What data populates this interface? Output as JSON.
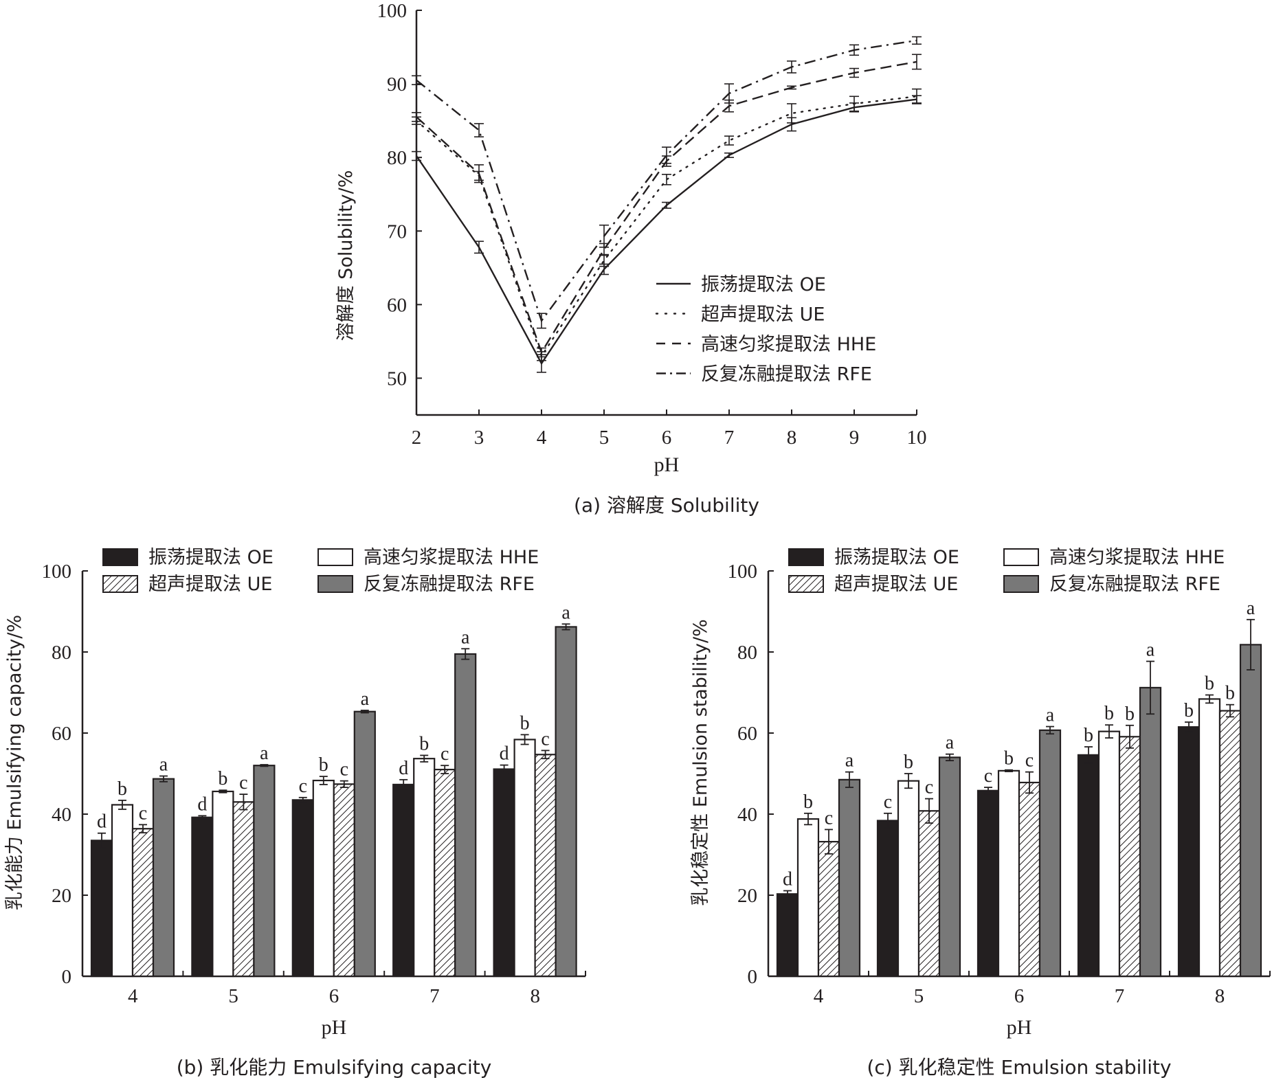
{
  "colors": {
    "ink": "#231f20",
    "oe": "#231f20",
    "hhe": "#ffffff",
    "ue_hatch": "#231f20",
    "rfe": "#787878"
  },
  "chart_data": [
    {
      "id": "a",
      "type": "line",
      "caption": "(a) 溶解度 Solubility",
      "xlabel": "pH",
      "ylabel": "溶解度 Solubility/%",
      "xlim": [
        2,
        10
      ],
      "ylim": [
        45,
        100
      ],
      "xticks": [
        "2",
        "3",
        "4",
        "5",
        "6",
        "7",
        "8",
        "9",
        "10"
      ],
      "yticks": [
        "50",
        "60",
        "70",
        "80",
        "90",
        "100"
      ],
      "x": [
        2,
        3,
        4,
        5,
        6,
        7,
        8,
        9,
        10
      ],
      "legend_position": "center-right",
      "series": [
        {
          "name": "振荡提取法  OE",
          "style": "solid",
          "values": [
            80.2,
            67.8,
            52.0,
            64.8,
            73.5,
            80.3,
            84.5,
            86.8,
            87.9
          ],
          "errors": [
            0.6,
            0.8,
            1.2,
            0.7,
            0.4,
            0.3,
            0.9,
            0.6,
            0.5
          ]
        },
        {
          "name": "超声提取法 UE",
          "style": "dotted",
          "values": [
            85.0,
            77.5,
            53.0,
            66.0,
            77.0,
            82.3,
            86.0,
            87.3,
            88.3
          ],
          "errors": [
            0.5,
            0.6,
            0.6,
            0.8,
            0.7,
            0.6,
            1.3,
            1.0,
            1.0
          ]
        },
        {
          "name": "高速匀浆提取法 HHE",
          "style": "dashed",
          "values": [
            85.5,
            77.8,
            53.5,
            67.5,
            79.5,
            87.0,
            89.5,
            91.5,
            93.0
          ],
          "errors": [
            0.6,
            1.2,
            0.6,
            0.8,
            0.7,
            0.8,
            0.2,
            0.6,
            1.0
          ]
        },
        {
          "name": "反复冻融提取法 RFE",
          "style": "dashdot",
          "values": [
            90.5,
            83.7,
            57.8,
            69.3,
            80.3,
            88.7,
            92.3,
            94.6,
            95.9
          ],
          "errors": [
            0.6,
            0.9,
            1.0,
            1.5,
            1.1,
            1.3,
            0.8,
            0.7,
            0.5
          ]
        }
      ]
    },
    {
      "id": "b",
      "type": "bar",
      "caption": "(b) 乳化能力 Emulsifying capacity",
      "xlabel": "pH",
      "ylabel": "乳化能力  Emulsifying capacity/%",
      "ylim": [
        0,
        100
      ],
      "yticks": [
        "0",
        "20",
        "40",
        "60",
        "80",
        "100"
      ],
      "categories": [
        "4",
        "5",
        "6",
        "7",
        "8"
      ],
      "legend_position": "top",
      "legend": [
        {
          "key": "oe",
          "label": "振荡提取法  OE"
        },
        {
          "key": "hhe",
          "label": "高速匀浆提取法 HHE"
        },
        {
          "key": "ue",
          "label": "超声提取法 UE"
        },
        {
          "key": "rfe",
          "label": "反复冻融提取法 RFE"
        }
      ],
      "series": [
        {
          "key": "oe",
          "name": "振荡提取法 OE",
          "values": [
            33.5,
            39.2,
            43.5,
            47.3,
            51.1
          ],
          "errors": [
            1.8,
            0.4,
            0.6,
            1.2,
            1.0
          ],
          "labels": [
            "d",
            "d",
            "c",
            "d",
            "d"
          ]
        },
        {
          "key": "hhe",
          "name": "高速匀浆提取法 HHE",
          "values": [
            42.3,
            45.6,
            48.3,
            53.7,
            58.4
          ],
          "errors": [
            1.1,
            0.3,
            1.0,
            0.8,
            1.2
          ],
          "labels": [
            "b",
            "b",
            "b",
            "b",
            "b"
          ]
        },
        {
          "key": "ue",
          "name": "超声提取法 UE",
          "values": [
            36.4,
            43.0,
            47.4,
            51.0,
            54.7
          ],
          "errors": [
            1.0,
            1.9,
            0.8,
            1.0,
            1.0
          ],
          "labels": [
            "c",
            "c",
            "c",
            "c",
            "c"
          ]
        },
        {
          "key": "rfe",
          "name": "反复冻融提取法 RFE",
          "values": [
            48.7,
            52.0,
            65.3,
            79.5,
            86.2
          ],
          "errors": [
            0.7,
            0.2,
            0.3,
            1.3,
            0.7
          ],
          "labels": [
            "a",
            "a",
            "a",
            "a",
            "a"
          ]
        }
      ]
    },
    {
      "id": "c",
      "type": "bar",
      "caption": "(c) 乳化稳定性 Emulsion stability",
      "xlabel": "pH",
      "ylabel": "乳化稳定性  Emulsion stability/%",
      "ylim": [
        0,
        100
      ],
      "yticks": [
        "0",
        "20",
        "40",
        "60",
        "80",
        "100"
      ],
      "categories": [
        "4",
        "5",
        "6",
        "7",
        "8"
      ],
      "legend_position": "top",
      "legend": [
        {
          "key": "oe",
          "label": "振荡提取法  OE"
        },
        {
          "key": "hhe",
          "label": "高速匀浆提取法 HHE"
        },
        {
          "key": "ue",
          "label": "超声提取法 UE"
        },
        {
          "key": "rfe",
          "label": "反复冻融提取法 RFE"
        }
      ],
      "series": [
        {
          "key": "oe",
          "name": "振荡提取法 OE",
          "values": [
            20.3,
            38.4,
            45.8,
            54.6,
            61.5
          ],
          "errors": [
            0.8,
            1.8,
            0.8,
            2.0,
            1.2
          ],
          "labels": [
            "d",
            "c",
            "c",
            "b",
            "b"
          ]
        },
        {
          "key": "hhe",
          "name": "高速匀浆提取法 HHE",
          "values": [
            38.8,
            48.2,
            50.7,
            60.4,
            68.4
          ],
          "errors": [
            1.4,
            1.8,
            0.2,
            1.6,
            1.0
          ],
          "labels": [
            "b",
            "b",
            "b",
            "b",
            "b"
          ]
        },
        {
          "key": "ue",
          "name": "超声提取法 UE",
          "values": [
            33.2,
            40.8,
            47.8,
            59.1,
            65.5
          ],
          "errors": [
            3.0,
            3.0,
            2.6,
            2.8,
            1.5
          ],
          "labels": [
            "c",
            "c",
            "c",
            "b",
            "b"
          ]
        },
        {
          "key": "rfe",
          "name": "反复冻融提取法 RFE",
          "values": [
            48.5,
            54.0,
            60.7,
            71.2,
            81.8
          ],
          "errors": [
            1.9,
            0.8,
            0.9,
            6.5,
            6.2
          ],
          "labels": [
            "a",
            "a",
            "a",
            "a",
            "a"
          ]
        }
      ]
    }
  ]
}
